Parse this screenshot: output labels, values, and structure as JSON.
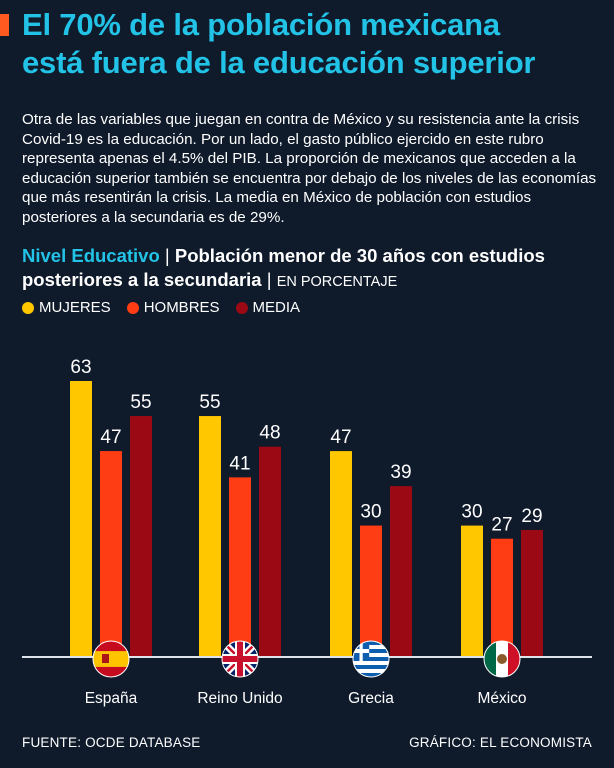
{
  "header": {
    "title_line1": "El 70% de la población mexicana",
    "title_line2": "está fuera de la educación superior"
  },
  "intro_text": "Otra de las variables que juegan en contra de México y su resistencia ante la crisis Covid-19 es la educación. Por un lado, el gasto público ejercido en este rubro representa apenas el 4.5% del PIB. La proporción de mexicanos que acceden a la educación superior también se encuentra por debajo de los niveles de las economías que más resentirán la crisis. La media en México de población con estudios posteriores a la secundaria es de 29%.",
  "subtitle": {
    "part1": "Nivel Educativo",
    "sep1": " | ",
    "part2": "Población menor de 30 años con estudios posteriores a la secundaria",
    "sep2": " | ",
    "part3": "EN PORCENTAJE"
  },
  "legend": [
    {
      "label": "MUJERES",
      "color": "#ffc700"
    },
    {
      "label": "HOMBRES",
      "color": "#ff3d14"
    },
    {
      "label": "MEDIA",
      "color": "#9b0a14"
    }
  ],
  "chart_data": {
    "type": "bar",
    "title": "Población menor de 30 años con estudios posteriores a la secundaria",
    "xlabel": "",
    "ylabel": "EN PORCENTAJE",
    "ylim": [
      0,
      63
    ],
    "categories": [
      "España",
      "Reino Unido",
      "Grecia",
      "México"
    ],
    "flags": [
      "spain-flag-icon",
      "uk-flag-icon",
      "greece-flag-icon",
      "mexico-flag-icon"
    ],
    "series": [
      {
        "name": "MUJERES",
        "color": "#ffc700",
        "values": [
          63,
          55,
          47,
          30
        ]
      },
      {
        "name": "HOMBRES",
        "color": "#ff3d14",
        "values": [
          47,
          41,
          30,
          27
        ]
      },
      {
        "name": "MEDIA",
        "color": "#9b0a14",
        "values": [
          55,
          48,
          39,
          29
        ]
      }
    ]
  },
  "footer": {
    "source": "FUENTE: OCDE DATABASE",
    "credit": "GRÁFICO: EL ECONOMISTA"
  }
}
